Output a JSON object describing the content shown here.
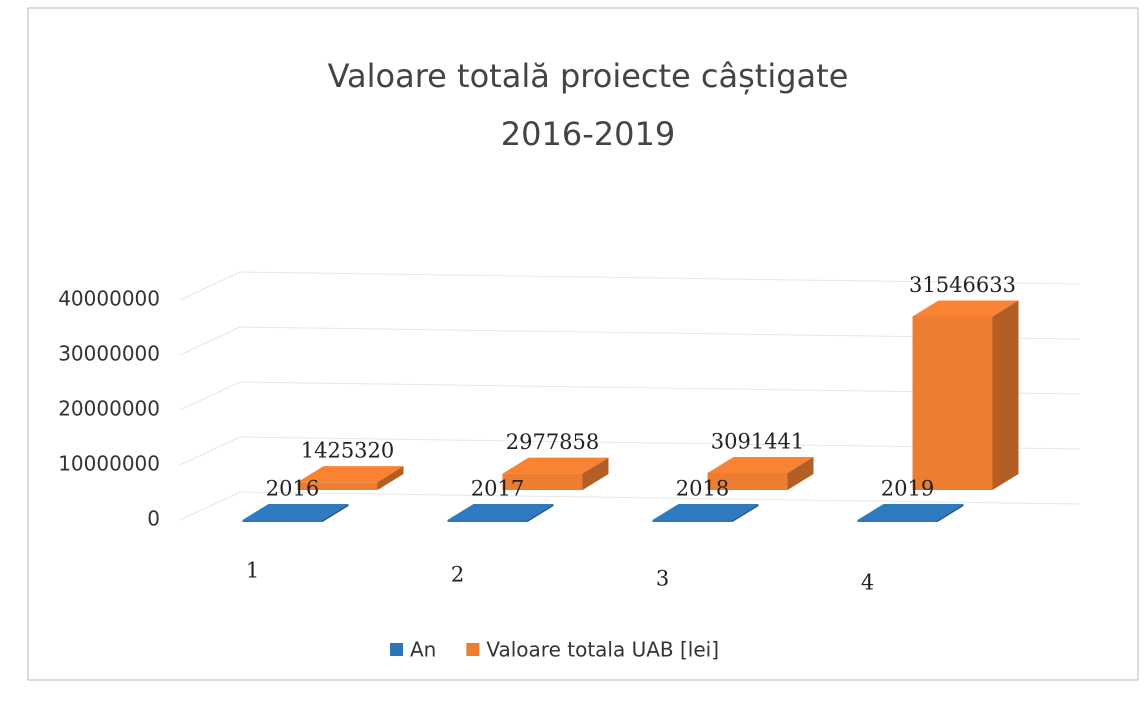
{
  "chart_data": {
    "type": "bar3d",
    "title": [
      "Valoare totală proiecte câștigate",
      "2016-2019"
    ],
    "categories": [
      "1",
      "2",
      "3",
      "4"
    ],
    "series": [
      {
        "name": "An",
        "color": "#2e75b6",
        "values": [
          2016,
          2017,
          2018,
          2019
        ]
      },
      {
        "name": "Valoare totala UAB [lei]",
        "color": "#ed7d31",
        "values": [
          1425320,
          2977858,
          3091441,
          31546633
        ]
      }
    ],
    "ylim": [
      0,
      40000000
    ],
    "yticks": [
      0,
      10000000,
      20000000,
      30000000,
      40000000
    ],
    "grid": true,
    "legend": "bottom"
  }
}
